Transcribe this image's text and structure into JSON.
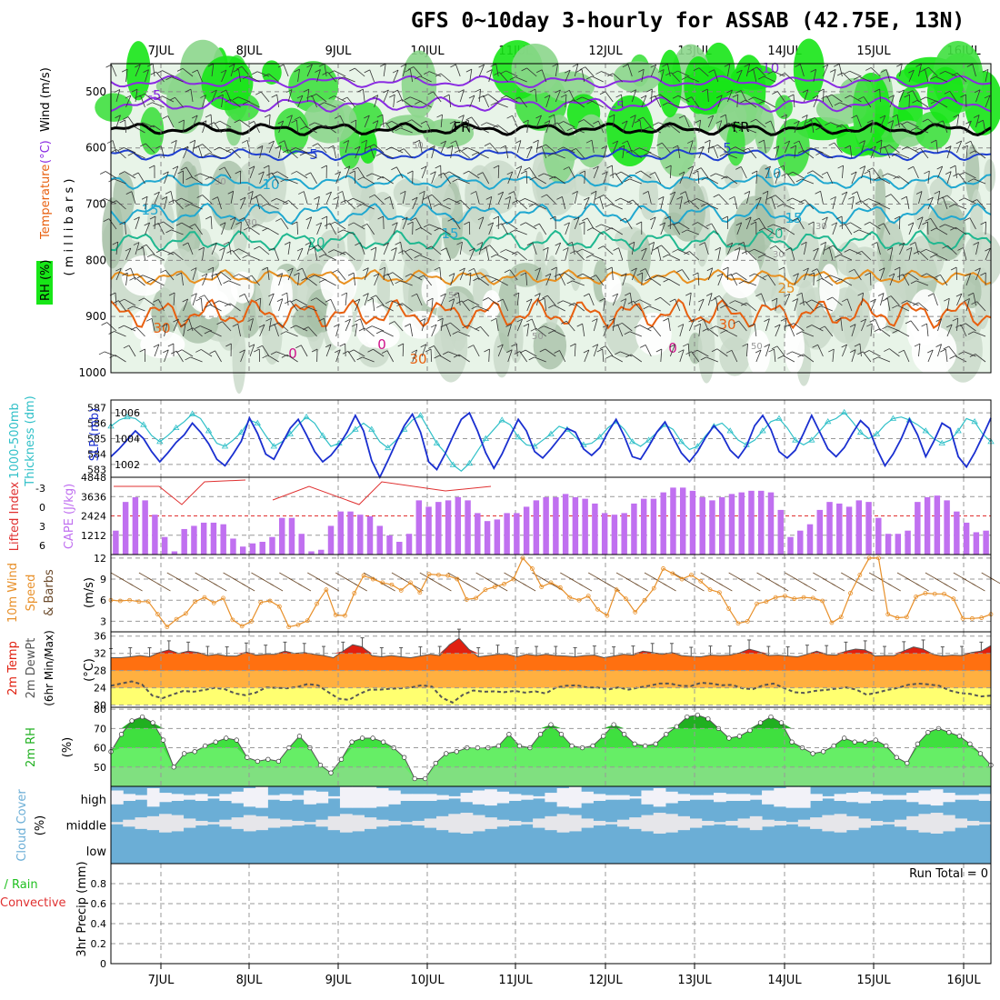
{
  "title": "GFS 0~10day 3-hourly for ASSAB (42.75E, 13N)",
  "colors": {
    "rh_green": "#17e617",
    "temp_purple": "#8a2be2",
    "temp_blue": "#2040d0",
    "temp_cyan": "#20a8d0",
    "temp_teal": "#20b890",
    "temp_orange": "#e89020",
    "temp_dark_orange": "#e86010",
    "slp_blue": "#1a2fd0",
    "thick_cyan": "#30c0c8",
    "cape_violet": "#c070f0",
    "li_red": "#e03030",
    "wind_orange": "#e8902a",
    "temp_red": "#e02010",
    "cloud_blue": "#6baed6",
    "cloud_white": "#f2f2f8"
  },
  "dates": [
    "7JUL",
    "8JUL",
    "9JUL",
    "10JUL",
    "11JUL",
    "12JUL",
    "13JUL",
    "14JUL",
    "15JUL",
    "16JUL"
  ],
  "chart_data": [
    {
      "type": "heatmap",
      "id": "upper",
      "ylabel_parts": [
        "RH (%)",
        "Temperature",
        "(°C)",
        "Wind (m/s)"
      ],
      "yunit": "( m i l l i b a r s )",
      "yticks": [
        500,
        600,
        700,
        800,
        900,
        1000
      ],
      "ylim": [
        1000,
        450
      ],
      "isotherm_labels": [
        "-10",
        "-5",
        "-5",
        "FR",
        "FR",
        "5",
        "5",
        "10",
        "10",
        "15",
        "15",
        "20",
        "20",
        "25",
        "30",
        "30",
        "30",
        "0",
        "0",
        "0"
      ],
      "rh_labels": [
        "50",
        "30",
        "30",
        "30",
        "30",
        "50",
        "50",
        "50"
      ]
    },
    {
      "type": "line",
      "id": "slp",
      "ylabel_left": "1000-500mb Thickness (dm)",
      "ylabel_right": "SLP (mb)",
      "yticks_left": [
        583,
        584,
        585,
        586,
        587
      ],
      "yticks_right": [
        1002,
        1004,
        1006
      ],
      "ylim_left": [
        582.5,
        587.5
      ],
      "ylim_right": [
        1001,
        1007
      ],
      "series": [
        {
          "values": [
            1002.6,
            1003.2,
            1003.9,
            1004.6,
            1004.0,
            1003.0,
            1002.2,
            1002.9,
            1003.7,
            1004.3,
            1005.2,
            1004.5,
            1003.6,
            1002.4,
            1001.9,
            1002.8,
            1003.8,
            1005.6,
            1004.4,
            1002.8,
            1002.4,
            1003.6,
            1004.8,
            1005.5,
            1004.3,
            1003.0,
            1002.2,
            1002.7,
            1003.5,
            1004.5,
            1005.8,
            1004.6,
            1002.3,
            1001.0,
            1002.3,
            1003.7,
            1005.0,
            1005.9,
            1004.5,
            1002.2,
            1001.6,
            1002.8,
            1004.2,
            1005.5,
            1006.0,
            1004.6,
            1002.9,
            1001.7,
            1002.8,
            1004.2,
            1005.5,
            1004.6,
            1003.0,
            1002.5,
            1003.2,
            1004.0,
            1004.8,
            1004.5,
            1003.2,
            1002.7,
            1003.3,
            1004.5,
            1005.5,
            1004.2,
            1002.6,
            1002.4,
            1003.4,
            1004.5,
            1005.3,
            1004.1,
            1002.9,
            1002.2,
            1003.0,
            1004.1,
            1005.0,
            1004.3,
            1003.1,
            1002.5,
            1003.4,
            1005.0,
            1005.8,
            1004.7,
            1003.0,
            1002.5,
            1003.1,
            1004.4,
            1005.8,
            1004.5,
            1003.2,
            1002.6,
            1003.3,
            1004.4,
            1005.4,
            1004.8,
            1003.2,
            1001.9,
            1002.8,
            1004.0,
            1005.5,
            1004.3,
            1002.6,
            1003.8,
            1005.2,
            1004.8,
            1002.6,
            1001.8,
            1002.9,
            1004.2,
            1005.6
          ]
        },
        {
          "values": [
            585.8,
            586.2,
            586.4,
            586.3,
            585.9,
            585.2,
            584.8,
            585.2,
            585.7,
            586.1,
            586.6,
            586.3,
            585.5,
            584.7,
            584.5,
            584.9,
            585.4,
            586.2,
            586.0,
            585.2,
            584.5,
            584.8,
            585.3,
            585.9,
            586.4,
            586.0,
            585.2,
            584.5,
            584.7,
            585.1,
            585.6,
            586.0,
            585.6,
            584.8,
            584.4,
            584.9,
            585.6,
            586.2,
            586.5,
            585.6,
            584.7,
            584.1,
            583.3,
            582.9,
            583.4,
            584.2,
            585.0,
            585.6,
            586.2,
            585.9,
            585.1,
            584.6,
            584.5,
            584.9,
            585.3,
            585.8,
            585.6,
            585.1,
            584.6,
            584.7,
            585.1,
            585.7,
            586.1,
            585.6,
            584.8,
            584.5,
            584.9,
            585.4,
            585.9,
            585.6,
            584.8,
            584.3,
            584.5,
            585.2,
            585.8,
            586.0,
            585.5,
            584.9,
            584.6,
            584.9,
            585.5,
            586.1,
            586.3,
            585.7,
            584.9,
            584.6,
            584.9,
            585.5,
            586.1,
            586.3,
            586.7,
            586.1,
            585.4,
            585.0,
            585.3,
            585.9,
            586.3,
            586.4,
            586.2,
            585.9,
            585.5,
            585.0,
            584.7,
            584.9,
            585.5,
            586.3,
            586.1,
            585.3,
            584.8
          ]
        }
      ]
    },
    {
      "type": "bar",
      "id": "cape",
      "ylabel_left": "Lifted Index",
      "ylabel_right": "CAPE (J/kg)",
      "yticks_left": [
        "-3",
        "0",
        "3",
        "6"
      ],
      "yticks_right": [
        1212,
        2424,
        3636,
        4848
      ],
      "ylim": [
        0,
        4848
      ],
      "values": [
        1500,
        3300,
        3600,
        3400,
        2500,
        1100,
        200,
        1600,
        1800,
        2000,
        2000,
        1900,
        1000,
        500,
        700,
        800,
        1100,
        2300,
        2300,
        1300,
        200,
        300,
        1800,
        2700,
        2700,
        2500,
        2400,
        1800,
        1200,
        800,
        1300,
        3400,
        3000,
        3300,
        3400,
        3600,
        3400,
        2600,
        2100,
        2200,
        2600,
        2600,
        3000,
        3400,
        3600,
        3600,
        3800,
        3600,
        3500,
        3200,
        2600,
        2500,
        2600,
        3200,
        3500,
        3500,
        3900,
        4200,
        4200,
        4000,
        3600,
        3400,
        3600,
        3800,
        3900,
        4000,
        4000,
        3900,
        2800,
        1100,
        1500,
        1900,
        2800,
        3300,
        3200,
        3000,
        3400,
        3300,
        2300,
        1300,
        1300,
        1500,
        3300,
        3600,
        3700,
        3400,
        2700,
        2000,
        1400,
        1500
      ]
    },
    {
      "type": "line",
      "id": "wind",
      "ylabel_left": "10m Wind",
      "ylabel_left2": "Speed",
      "ylabel_left3": "& Barbs",
      "yunit": "(m/s)",
      "yticks": [
        3,
        6,
        9,
        12
      ],
      "ylim": [
        1.5,
        12.5
      ],
      "values": [
        6.0,
        5.9,
        6.0,
        5.8,
        5.8,
        4.0,
        2.2,
        3.3,
        4.1,
        5.8,
        6.4,
        5.6,
        6.3,
        3.2,
        2.3,
        3.0,
        5.7,
        5.9,
        5.1,
        2.2,
        2.5,
        3.1,
        5.5,
        7.5,
        3.9,
        3.8,
        7.0,
        9.5,
        9.0,
        8.5,
        8.2,
        7.4,
        8.5,
        7.1,
        9.7,
        9.6,
        9.5,
        9.0,
        6.1,
        6.3,
        7.5,
        7.9,
        8.3,
        9.0,
        12.0,
        10.5,
        7.9,
        8.5,
        7.8,
        6.4,
        6.0,
        6.6,
        4.7,
        3.8,
        7.5,
        6.2,
        4.3,
        6.0,
        7.7,
        10.5,
        9.8,
        9.0,
        9.6,
        8.7,
        7.5,
        7.1,
        4.8,
        2.7,
        3.0,
        5.5,
        5.8,
        6.4,
        6.6,
        6.2,
        6.4,
        6.3,
        5.9,
        2.8,
        3.6,
        7.0,
        9.6,
        12.0,
        12.0,
        4.0,
        3.5,
        3.6,
        6.5,
        7.0,
        6.9,
        6.9,
        6.2,
        3.4,
        3.4,
        3.5,
        4.0
      ]
    },
    {
      "type": "area",
      "id": "temp2m",
      "ylabel_left": "2m Temp",
      "ylabel_left2": "2m DewPt",
      "ylabel_left3": "(6hr Min/Max)",
      "yunit": "(°C)",
      "yticks": [
        20,
        24,
        28,
        32,
        36
      ],
      "ylim": [
        19.5,
        37
      ],
      "series": [
        {
          "values": [
            31.0,
            31.0,
            31.2,
            31.5,
            31.2,
            32.2,
            32.8,
            32.0,
            32.5,
            32.2,
            31.5,
            31.8,
            31.4,
            31.4,
            32.3,
            31.6,
            31.8,
            31.8,
            32.5,
            32.0,
            32.2,
            31.8,
            31.5,
            31.0,
            32.5,
            34.0,
            33.5,
            31.5,
            31.2,
            31.5,
            31.2,
            31.0,
            31.4,
            31.8,
            31.5,
            34.0,
            35.5,
            33.0,
            31.2,
            31.5,
            31.8,
            31.8,
            31.2,
            31.8,
            31.5,
            31.8,
            31.5,
            31.4,
            31.2,
            31.5,
            31.6,
            31.0,
            31.4,
            31.8,
            31.6,
            32.5,
            32.2,
            31.8,
            32.2,
            31.5,
            31.3,
            31.2,
            31.6,
            31.5,
            31.6,
            32.1,
            33.0,
            32.4,
            31.5,
            31.6,
            31.4,
            31.2,
            31.8,
            32.5,
            31.7,
            31.6,
            32.5,
            33.0,
            32.8,
            31.4,
            31.5,
            31.5,
            32.6,
            33.5,
            33.0,
            31.8,
            31.4,
            31.6,
            31.5,
            32.2,
            32.5,
            33.8
          ]
        },
        {
          "values": [
            24.5,
            25.0,
            25.5,
            24.8,
            22.2,
            21.6,
            22.5,
            23.3,
            23.1,
            23.5,
            24.0,
            23.7,
            22.7,
            22.3,
            22.9,
            24.1,
            24.0,
            23.9,
            24.2,
            24.9,
            24.6,
            23.0,
            21.5,
            21.2,
            22.6,
            23.6,
            23.6,
            23.8,
            23.9,
            24.1,
            24.6,
            24.3,
            21.7,
            20.6,
            22.4,
            23.4,
            23.1,
            23.2,
            23.0,
            23.3,
            22.9,
            23.2,
            22.7,
            24.1,
            24.5,
            24.6,
            24.1,
            24.1,
            23.6,
            24.1,
            23.6,
            24.1,
            24.5,
            25.0,
            25.0,
            24.5,
            24.4,
            25.2,
            25.0,
            24.6,
            24.7,
            23.9,
            23.7,
            24.6,
            25.0,
            24.0,
            23.0,
            22.8,
            23.3,
            23.5,
            23.8,
            24.1,
            23.6,
            22.4,
            22.9,
            23.5,
            24.0,
            24.7,
            25.0,
            24.8,
            24.5,
            23.4,
            22.8,
            22.6,
            22.0,
            22.2
          ]
        }
      ]
    },
    {
      "type": "area",
      "id": "rh2m",
      "ylabel_left": "2m RH",
      "yunit": "(%)",
      "yticks": [
        50,
        60,
        70,
        80
      ],
      "ylim": [
        40,
        81
      ],
      "values": [
        58,
        67,
        74,
        76,
        73,
        64,
        50,
        57,
        58,
        61,
        63,
        65,
        64,
        55,
        53,
        54,
        53,
        60,
        66,
        60,
        51,
        47,
        54,
        63,
        65,
        65,
        63,
        60,
        55,
        44,
        44,
        52,
        57,
        58,
        60,
        60,
        60,
        61,
        67,
        61,
        60,
        67,
        72,
        67,
        61,
        60,
        61,
        66,
        72,
        67,
        62,
        61,
        62,
        67,
        71,
        76,
        77,
        75,
        70,
        65,
        66,
        69,
        73,
        76,
        73,
        63,
        60,
        57,
        58,
        61,
        65,
        63,
        63,
        64,
        61,
        55,
        52,
        62,
        68,
        70,
        68,
        66,
        62,
        57,
        51
      ]
    },
    {
      "type": "heatmap",
      "id": "cloud",
      "ylabel_left": "Cloud Cover",
      "yunit": "(%)",
      "rows": [
        "high",
        "middle",
        "low"
      ],
      "high": [
        60,
        30,
        20,
        80,
        40,
        30,
        20,
        30,
        10,
        30,
        50,
        80,
        90,
        20,
        30,
        20,
        60,
        50,
        10,
        90,
        90,
        90,
        80,
        60,
        30,
        30,
        30,
        20,
        10,
        40,
        60,
        70,
        50,
        30,
        20,
        10,
        40,
        80,
        90,
        50,
        30,
        20,
        20,
        10,
        60,
        80,
        50,
        30,
        20,
        20,
        40,
        30,
        30,
        20,
        60,
        80,
        90,
        90,
        30,
        10,
        30,
        40,
        50,
        30,
        20,
        20,
        40,
        60,
        70,
        40,
        20,
        20,
        30
      ],
      "middle": [
        10,
        30,
        50,
        60,
        80,
        70,
        40,
        20,
        10,
        30,
        50,
        70,
        60,
        40,
        30,
        20,
        10,
        30,
        60,
        80,
        70,
        50,
        30,
        20,
        10,
        20,
        40,
        60,
        80,
        90,
        70,
        50,
        30,
        20,
        10,
        40,
        60,
        80,
        70,
        40,
        20,
        10,
        30,
        50,
        70,
        90,
        80,
        60,
        40,
        20,
        10,
        20,
        40,
        60,
        30,
        20,
        10,
        30,
        50,
        70,
        80,
        60,
        40,
        20,
        10,
        30,
        60,
        80,
        90,
        70,
        40,
        20,
        10
      ],
      "low": [
        0,
        0,
        0,
        0,
        0,
        0,
        0,
        0,
        0,
        0,
        0,
        0,
        0,
        0,
        0,
        0,
        0,
        0,
        0,
        0,
        0,
        0,
        0,
        0,
        0,
        0,
        0,
        0,
        0,
        0,
        0,
        0,
        0,
        0,
        0,
        0,
        0,
        0,
        0,
        0,
        0,
        0,
        0,
        0,
        0,
        0,
        0,
        0,
        0,
        0,
        0,
        0,
        0,
        0,
        0,
        0,
        0,
        0,
        0,
        0,
        0,
        0,
        0,
        0,
        0,
        0,
        0,
        0,
        0,
        0,
        0,
        0,
        0
      ]
    },
    {
      "type": "bar",
      "id": "precip",
      "ylabel_left": "Total / Rain",
      "ylabel_left2": "Convective",
      "yunit": "3hr Precip (mm)",
      "yticks": [
        "0",
        "0.2",
        "0.4",
        "0.6",
        "0.8"
      ],
      "ylim": [
        0,
        1
      ],
      "annotation": "Run Total = 0",
      "values": []
    }
  ]
}
